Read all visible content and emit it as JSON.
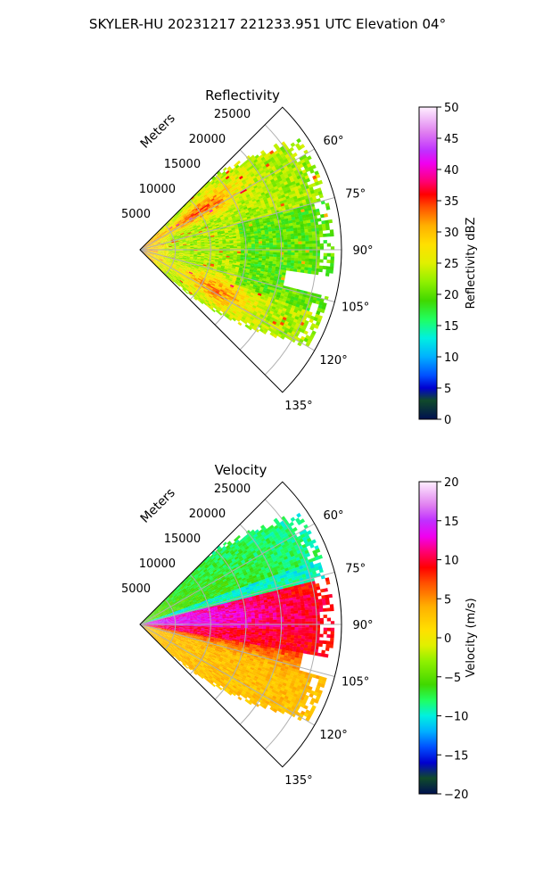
{
  "figure": {
    "suptitle": "SKYLER-HU  20231217  221233.951 UTC Elevation 04°"
  },
  "chart_data": [
    {
      "type": "heatmap",
      "title": "Reflectivity",
      "projection": "polar-sector",
      "azimuth_range_deg": [
        45,
        135
      ],
      "range_max_m": 28500,
      "radial_label": "Meters",
      "range_ticks": [
        5000,
        10000,
        15000,
        20000,
        25000
      ],
      "range_tick_labels": [
        "5000",
        "10000",
        "15000",
        "20000",
        "25000"
      ],
      "azimuth_ticks": [
        60,
        75,
        90,
        105,
        120,
        135
      ],
      "azimuth_tick_labels": [
        "60°",
        "75°",
        "90°",
        "105°",
        "120°",
        "135°"
      ],
      "grid": true,
      "colorbar": {
        "label": "Reflectivity dBZ",
        "vmin": 0,
        "vmax": 50,
        "ticks": [
          0,
          5,
          10,
          15,
          20,
          25,
          30,
          35,
          40,
          45,
          50
        ],
        "tick_labels": [
          "0",
          "5",
          "10",
          "15",
          "20",
          "25",
          "30",
          "35",
          "40",
          "45",
          "50"
        ],
        "stops": [
          [
            0,
            "#001050"
          ],
          [
            3,
            "#104a2a"
          ],
          [
            5,
            "#0000d0"
          ],
          [
            7,
            "#0050ff"
          ],
          [
            10,
            "#00b0ff"
          ],
          [
            13,
            "#00f0e0"
          ],
          [
            16,
            "#20ff60"
          ],
          [
            19,
            "#40d800"
          ],
          [
            22,
            "#90f000"
          ],
          [
            25,
            "#e0f000"
          ],
          [
            28,
            "#ffe000"
          ],
          [
            31,
            "#ffb000"
          ],
          [
            34,
            "#ff5000"
          ],
          [
            36,
            "#ff0000"
          ],
          [
            38,
            "#ff0070"
          ],
          [
            41,
            "#f000f0"
          ],
          [
            43,
            "#c030ff"
          ],
          [
            46,
            "#e080f0"
          ],
          [
            50,
            "#fff0ff"
          ]
        ]
      }
    },
    {
      "type": "heatmap",
      "title": "Velocity",
      "projection": "polar-sector",
      "azimuth_range_deg": [
        45,
        135
      ],
      "range_max_m": 28500,
      "radial_label": "Meters",
      "range_ticks": [
        5000,
        10000,
        15000,
        20000,
        25000
      ],
      "range_tick_labels": [
        "5000",
        "10000",
        "15000",
        "20000",
        "25000"
      ],
      "azimuth_ticks": [
        60,
        75,
        90,
        105,
        120,
        135
      ],
      "azimuth_tick_labels": [
        "60°",
        "75°",
        "90°",
        "105°",
        "120°",
        "135°"
      ],
      "grid": true,
      "colorbar": {
        "label": "Velocity (m/s)",
        "vmin": -20,
        "vmax": 20,
        "ticks": [
          -20,
          -15,
          -10,
          -5,
          0,
          5,
          10,
          15,
          20
        ],
        "tick_labels": [
          "−20",
          "−15",
          "−10",
          "−5",
          "0",
          "5",
          "10",
          "15",
          "20"
        ],
        "stops": [
          [
            -20,
            "#001050"
          ],
          [
            -18,
            "#104a2a"
          ],
          [
            -16,
            "#0000d0"
          ],
          [
            -14,
            "#0050ff"
          ],
          [
            -12,
            "#00b0ff"
          ],
          [
            -10,
            "#00f0e0"
          ],
          [
            -8,
            "#20ff60"
          ],
          [
            -6,
            "#40d800"
          ],
          [
            -3,
            "#90f000"
          ],
          [
            -1,
            "#e0f000"
          ],
          [
            1,
            "#ffe000"
          ],
          [
            4,
            "#ffb000"
          ],
          [
            7,
            "#ff5000"
          ],
          [
            9,
            "#ff0000"
          ],
          [
            11,
            "#ff0070"
          ],
          [
            13,
            "#f000f0"
          ],
          [
            15,
            "#c030ff"
          ],
          [
            17,
            "#e080f0"
          ],
          [
            20,
            "#fff0ff"
          ]
        ]
      }
    }
  ]
}
